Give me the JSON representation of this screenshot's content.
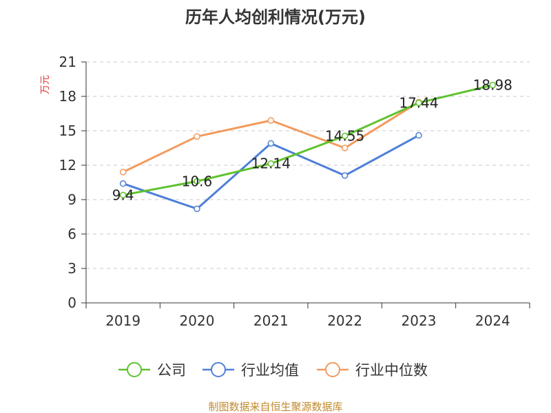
{
  "chart_data": {
    "type": "line",
    "title": "历年人均创利情况(万元)",
    "ylabel": "万元",
    "ylim": [
      0,
      21
    ],
    "yticks": [
      0,
      3,
      6,
      9,
      12,
      15,
      18,
      21
    ],
    "grid": true,
    "legend_position": "bottom",
    "categories": [
      "2019",
      "2020",
      "2021",
      "2022",
      "2023",
      "2024"
    ],
    "series": [
      {
        "name": "公司",
        "color": "#5ec22d",
        "values": [
          9.4,
          10.6,
          12.14,
          14.55,
          17.44,
          18.98
        ],
        "labels": [
          "9.4",
          "10.6",
          "12.14",
          "14.55",
          "17.44",
          "18.98"
        ]
      },
      {
        "name": "行业均值",
        "color": "#4e7fd8",
        "values": [
          10.4,
          8.2,
          13.9,
          11.1,
          14.6,
          null
        ]
      },
      {
        "name": "行业中位数",
        "color": "#f39a5c",
        "values": [
          11.4,
          14.5,
          15.9,
          13.5,
          17.5,
          null
        ]
      }
    ],
    "ylabel_color": "#e03c3c",
    "source": "制图数据来自恒生聚源数据库",
    "source_color": "#c08a2d"
  }
}
